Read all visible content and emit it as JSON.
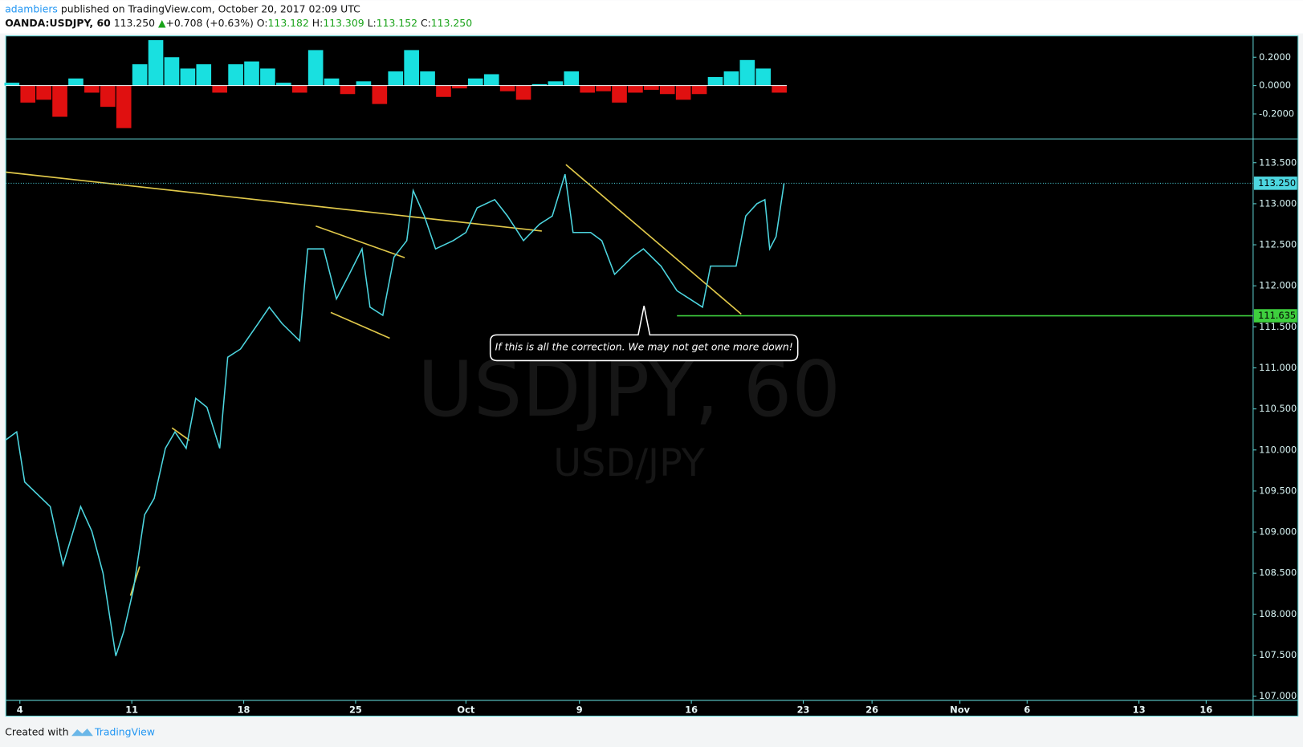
{
  "header": {
    "author": "adambiers",
    "published": "published on TradingView.com, October 20, 2017 02:09 UTC",
    "symbol": "OANDA:USDJPY, 60",
    "price": "113.250",
    "arrow": "▲",
    "change": "+0.708 (+0.63%)",
    "open_label": "O:",
    "open": "113.182",
    "high_label": "H:",
    "high": "113.309",
    "low_label": "L:",
    "low": "113.152",
    "close_label": "C:",
    "close": "113.250"
  },
  "chart_data": [
    {
      "type": "histogram",
      "positive_color": "#19e0e0",
      "negative_color": "#e01010",
      "x": [
        -0.5,
        0.5,
        1.5,
        2.5,
        3.5,
        4.5,
        5.5,
        6.5,
        7.5,
        8.5,
        9.5,
        10.5,
        11.5,
        12.5,
        13.5,
        14.5,
        15.5,
        16.5,
        17.5,
        18.5,
        19.5,
        20.5,
        21.5,
        22.5,
        23.5,
        24.5,
        25.5,
        26.5,
        27.5,
        28.5,
        29.5,
        30.5,
        31.5,
        32.5,
        33.5,
        34.5,
        35.5,
        36.5,
        37.5,
        38.5,
        39.5,
        40.5,
        41.5,
        42.5,
        43.5,
        44.5,
        45.5,
        46.5,
        47.5
      ],
      "values": [
        0.02,
        -0.12,
        -0.1,
        -0.22,
        0.05,
        -0.05,
        -0.15,
        -0.3,
        0.15,
        0.32,
        0.2,
        0.12,
        0.15,
        -0.05,
        0.15,
        0.17,
        0.12,
        0.02,
        -0.05,
        0.25,
        0.05,
        -0.06,
        0.03,
        -0.13,
        0.1,
        0.25,
        0.1,
        -0.08,
        -0.02,
        0.05,
        0.08,
        -0.04,
        -0.1,
        0.01,
        0.03,
        0.1,
        -0.05,
        -0.04,
        -0.12,
        -0.05,
        -0.03,
        -0.06,
        -0.1,
        -0.06,
        0.06,
        0.1,
        0.18,
        0.12,
        -0.05
      ],
      "xlim": [
        -0.88,
        77.14
      ],
      "ylim": [
        -0.37,
        0.35
      ],
      "yticks": [
        {
          "value": 0.2,
          "label": "0.2000"
        },
        {
          "value": 0,
          "label": "0.0000"
        },
        {
          "value": -0.2,
          "label": "-0.2000"
        }
      ]
    },
    {
      "type": "line",
      "color": "#4dd6e0",
      "watermark": "USDJPY, 60",
      "watermark_sub": "USD/JPY",
      "annotation": "If this is all the correction. We may not get one more down!",
      "x": [
        -0.9,
        -0.2,
        0.3,
        1.9,
        2.7,
        3.8,
        4.5,
        5.2,
        6.0,
        6.5,
        7.1,
        7.8,
        8.4,
        9.1,
        9.7,
        10.4,
        11.0,
        11.7,
        12.5,
        13.0,
        13.8,
        14.9,
        15.6,
        16.4,
        17.5,
        18.0,
        19.0,
        19.8,
        20.6,
        21.4,
        21.9,
        22.7,
        23.4,
        24.2,
        24.6,
        25.3,
        26.0,
        27.1,
        27.9,
        28.6,
        29.7,
        30.5,
        31.5,
        32.5,
        33.3,
        34.1,
        34.6,
        35.7,
        36.4,
        37.2,
        38.3,
        39.0,
        40.1,
        41.1,
        41.9,
        42.7,
        43.2,
        44.0,
        44.8,
        45.4,
        46.1,
        46.6,
        46.9,
        47.3,
        47.8
      ],
      "values": [
        110.12,
        110.22,
        109.61,
        109.31,
        108.6,
        109.31,
        109.01,
        108.5,
        107.49,
        107.79,
        108.3,
        109.21,
        109.41,
        110.02,
        110.22,
        110.02,
        110.63,
        110.52,
        110.02,
        111.13,
        111.23,
        111.54,
        111.74,
        111.54,
        111.33,
        112.45,
        112.45,
        111.84,
        112.14,
        112.45,
        111.74,
        111.64,
        112.35,
        112.55,
        113.16,
        112.85,
        112.45,
        112.55,
        112.65,
        112.95,
        113.05,
        112.85,
        112.55,
        112.75,
        112.85,
        113.36,
        112.65,
        112.65,
        112.55,
        112.14,
        112.35,
        112.45,
        112.24,
        111.94,
        111.84,
        111.74,
        112.24,
        112.24,
        112.24,
        112.85,
        113.0,
        113.05,
        112.45,
        112.6,
        113.25
      ],
      "last_price": {
        "value": 113.25,
        "label": "113.250"
      },
      "support": {
        "value": 111.635,
        "label": "111.635",
        "from_x": 41.1,
        "color": "#3ecf3e"
      },
      "xlim": [
        -0.88,
        77.14
      ],
      "ylim": [
        106.95,
        113.78
      ],
      "yticks": [
        {
          "value": 113.5,
          "label": "113.500"
        },
        {
          "value": 113,
          "label": "113.000"
        },
        {
          "value": 112.5,
          "label": "112.500"
        },
        {
          "value": 112,
          "label": "112.000"
        },
        {
          "value": 111.5,
          "label": "111.500"
        },
        {
          "value": 111,
          "label": "111.000"
        },
        {
          "value": 110.5,
          "label": "110.500"
        },
        {
          "value": 110,
          "label": "110.000"
        },
        {
          "value": 109.5,
          "label": "109.500"
        },
        {
          "value": 109,
          "label": "109.000"
        },
        {
          "value": 108.5,
          "label": "108.500"
        },
        {
          "value": 108,
          "label": "108.000"
        },
        {
          "value": 107.5,
          "label": "107.500"
        },
        {
          "value": 107,
          "label": "107.000"
        }
      ],
      "xticks": [
        {
          "value": 0,
          "label": "4"
        },
        {
          "value": 7,
          "label": "11"
        },
        {
          "value": 14,
          "label": "18"
        },
        {
          "value": 21,
          "label": "25"
        },
        {
          "value": 27.9,
          "label": "Oct"
        },
        {
          "value": 35,
          "label": "9"
        },
        {
          "value": 42,
          "label": "16"
        },
        {
          "value": 49,
          "label": "23"
        },
        {
          "value": 53.3,
          "label": "26"
        },
        {
          "value": 58.8,
          "label": "Nov"
        },
        {
          "value": 63,
          "label": "6"
        },
        {
          "value": 70,
          "label": "13"
        },
        {
          "value": 74.2,
          "label": "16"
        }
      ]
    }
  ],
  "footer": {
    "created": "Created with",
    "brand": "TradingView"
  }
}
